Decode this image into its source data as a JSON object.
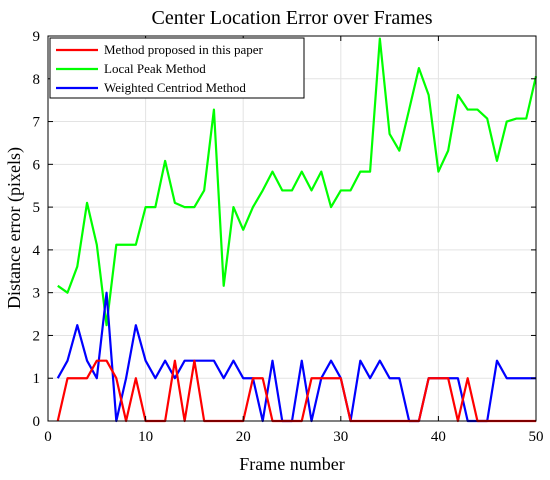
{
  "chart_data": {
    "type": "line",
    "title": "Center Location Error over Frames",
    "xlabel": "Frame number",
    "ylabel": "Distance error (pixels)",
    "xlim": [
      0,
      50
    ],
    "ylim": [
      0,
      9
    ],
    "xticks": [
      0,
      10,
      20,
      30,
      40,
      50
    ],
    "yticks": [
      0,
      1,
      2,
      3,
      4,
      5,
      6,
      7,
      8,
      9
    ],
    "grid": true,
    "legend_position": "top-left",
    "x": [
      1,
      2,
      3,
      4,
      5,
      6,
      7,
      8,
      9,
      10,
      11,
      12,
      13,
      14,
      15,
      16,
      17,
      18,
      19,
      20,
      21,
      22,
      23,
      24,
      25,
      26,
      27,
      28,
      29,
      30,
      31,
      32,
      33,
      34,
      35,
      36,
      37,
      38,
      39,
      40,
      41,
      42,
      43,
      44,
      45,
      46,
      47,
      48,
      49,
      50
    ],
    "series": [
      {
        "name": "Method proposed in this paper",
        "color": "#ff0000",
        "values": [
          0,
          1,
          1,
          1,
          1.41,
          1.41,
          1,
          0,
          1,
          0,
          0,
          0,
          1.41,
          0,
          1.41,
          0,
          0,
          0,
          0,
          0,
          1,
          1,
          0,
          0,
          0,
          0,
          1,
          1,
          1,
          1,
          0,
          0,
          0,
          0,
          0,
          0,
          0,
          0,
          1,
          1,
          1,
          0,
          1,
          0,
          0,
          0,
          0,
          0,
          0,
          0
        ]
      },
      {
        "name": "Local Peak Method",
        "color": "#00ff00",
        "values": [
          3.16,
          3.0,
          3.61,
          5.1,
          4.12,
          2.24,
          4.12,
          4.12,
          4.12,
          5.0,
          5.0,
          6.08,
          5.1,
          5.0,
          5.0,
          5.39,
          7.28,
          3.16,
          5.0,
          4.47,
          5.0,
          5.39,
          5.83,
          5.39,
          5.39,
          5.83,
          5.39,
          5.83,
          5.0,
          5.39,
          5.39,
          5.83,
          5.83,
          8.94,
          6.71,
          6.32,
          7.28,
          8.25,
          7.62,
          5.83,
          6.32,
          7.62,
          7.28,
          7.28,
          7.07,
          6.08,
          7.0,
          7.07,
          7.07,
          8.06
        ]
      },
      {
        "name": "Weighted Centriod Method",
        "color": "#0000ff",
        "values": [
          1,
          1.41,
          2.24,
          1.41,
          1,
          3.0,
          0,
          1,
          2.24,
          1.41,
          1,
          1.41,
          1,
          1.41,
          1.41,
          1.41,
          1.41,
          1,
          1.41,
          1,
          1,
          0,
          1.41,
          0,
          0,
          1.41,
          0,
          1,
          1.41,
          1,
          0,
          1.41,
          1,
          1.41,
          1,
          1,
          0,
          0,
          1,
          1,
          1,
          1,
          0,
          0,
          0,
          1.41,
          1,
          1,
          1,
          1
        ]
      }
    ]
  }
}
